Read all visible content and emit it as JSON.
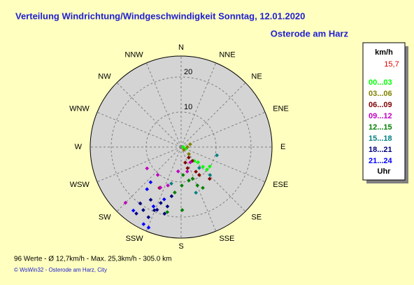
{
  "chart_data": {
    "type": "polar",
    "title": "Verteilung Windrichtung/Windgeschwindigkeit  Sonntag, 12.01.2020",
    "subtitle": "Osterode am Harz",
    "directions": [
      "N",
      "NNE",
      "NE",
      "ENE",
      "E",
      "ESE",
      "SE",
      "SSE",
      "S",
      "SSW",
      "SW",
      "WSW",
      "W",
      "WNW",
      "NW",
      "NNW"
    ],
    "rlim": [
      0,
      26
    ],
    "rticks": [
      10,
      20
    ],
    "legend_title": "km/h",
    "legend_note": "15,7",
    "legend_footer": "Uhr",
    "series": [
      {
        "name": "00...03",
        "color": "#00ff00",
        "theta": [
          90,
          106,
          132,
          131,
          124,
          132,
          136
        ],
        "values": [
          0.6,
          1.5,
          8.4,
          9.8,
          9.9,
          6.5,
          5.5
        ]
      },
      {
        "name": "03...06",
        "color": "#808000",
        "theta": [
          90,
          73,
          135,
          132
        ],
        "values": [
          1.8,
          2.7,
          1.1,
          3.0
        ]
      },
      {
        "name": "06...09",
        "color": "#800000",
        "theta": [
          144,
          141,
          163,
          149,
          147,
          138,
          165,
          208
        ],
        "values": [
          3.7,
          5.1,
          6.3,
          8.2,
          9.5,
          12.2,
          4.6,
          13.2
        ]
      },
      {
        "name": "09...12",
        "color": "#c000c0",
        "theta": [
          149,
          166,
          220,
          238,
          207,
          187,
          225,
          199
        ],
        "values": [
          5.1,
          7.2,
          10.4,
          11.5,
          13.0,
          7.0,
          22.5,
          11.6
        ]
      },
      {
        "name": "12...15",
        "color": "#008000",
        "theta": [
          176,
          167,
          157,
          152,
          179,
          188,
          179,
          192,
          160
        ],
        "values": [
          8.0,
          9.8,
          11.9,
          13.2,
          11.0,
          13.1,
          18.0,
          19.0,
          9.6
        ]
      },
      {
        "name": "15...18",
        "color": "#008080",
        "theta": [
          103,
          134,
          139,
          195,
          162
        ],
        "values": [
          10.5,
          11.5,
          7.9,
          10.8,
          13.7
        ]
      },
      {
        "name": "18...21",
        "color": "#000080",
        "theta": [
          210,
          203,
          200,
          193,
          211,
          214,
          205,
          201,
          191,
          216,
          194
        ],
        "values": [
          17.4,
          19.6,
          17.0,
          17.4,
          21.0,
          22.9,
          22.1,
          19.2,
          14.3,
          19.9,
          19.6
        ]
      },
      {
        "name": "21...24",
        "color": "#0000ff",
        "theta": [
          219,
          221,
          198,
          217,
          206,
          202,
          205
        ],
        "values": [
          15.5,
          13.3,
          15.7,
          22.7,
          24.5,
          24.8,
          18.7
        ]
      }
    ],
    "stats": "96 Werte   -   Ø 12,7km/h  -  Max. 25,3km/h   -   305.0 km",
    "credit": "© WsWin32  -  Osterode am Harz, City"
  }
}
